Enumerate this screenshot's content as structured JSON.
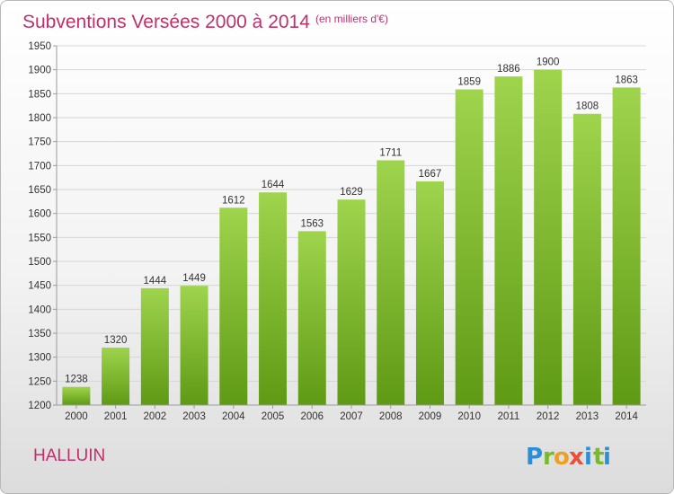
{
  "header": {
    "title": "Subventions Versées 2000 à 2014",
    "subtitle": "(en milliers d'€)"
  },
  "footer": {
    "commune": "HALLUIN",
    "logo_letters": [
      "P",
      "r",
      "o",
      "x",
      "i",
      "t",
      "i"
    ],
    "logo_colors": [
      "#2a8fd6",
      "#7ab82e",
      "#f0a020",
      "#e8503a",
      "#2a8fd6",
      "#7ab82e",
      "#2a8fd6"
    ]
  },
  "chart_data": {
    "type": "bar",
    "title": "Subventions Versées 2000 à 2014",
    "subtitle": "(en milliers d'€)",
    "categories": [
      "2000",
      "2001",
      "2002",
      "2003",
      "2004",
      "2005",
      "2006",
      "2007",
      "2008",
      "2009",
      "2010",
      "2011",
      "2012",
      "2013",
      "2014"
    ],
    "values": [
      1238,
      1320,
      1444,
      1449,
      1612,
      1644,
      1563,
      1629,
      1711,
      1667,
      1859,
      1886,
      1900,
      1808,
      1863
    ],
    "ylim": [
      1200,
      1950
    ],
    "yticks": [
      1200,
      1250,
      1300,
      1350,
      1400,
      1450,
      1500,
      1550,
      1600,
      1650,
      1700,
      1750,
      1800,
      1850,
      1900,
      1950
    ],
    "grid": true,
    "colors": {
      "bar_top": "#9fd44d",
      "bar_bottom": "#5f9a14",
      "title": "#c0306a"
    }
  }
}
